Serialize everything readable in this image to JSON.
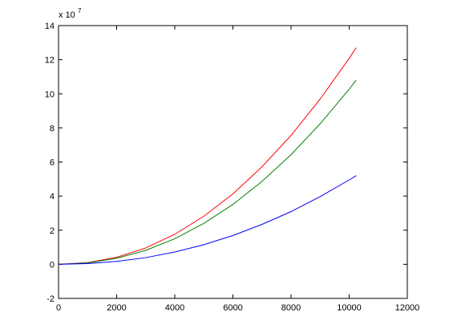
{
  "chart_data": {
    "type": "line",
    "x": [
      0,
      1000,
      2000,
      3000,
      4000,
      5000,
      6000,
      7000,
      8000,
      9000,
      10000,
      10240
    ],
    "series": [
      {
        "color": "#ff0000",
        "values": [
          0,
          0.1,
          0.41,
          0.96,
          1.76,
          2.82,
          4.13,
          5.72,
          7.56,
          9.69,
          12.08,
          12.7
        ]
      },
      {
        "color": "#008000",
        "values": [
          0,
          0.08,
          0.35,
          0.82,
          1.5,
          2.4,
          3.51,
          4.86,
          6.43,
          8.24,
          10.27,
          10.8
        ]
      },
      {
        "color": "#0000ff",
        "values": [
          0,
          0.04,
          0.17,
          0.39,
          0.72,
          1.15,
          1.69,
          2.34,
          3.09,
          3.97,
          4.95,
          5.2
        ]
      }
    ],
    "xlim": [
      0,
      12000
    ],
    "xticks": [
      0,
      2000,
      4000,
      6000,
      8000,
      10000,
      12000
    ],
    "ylim": [
      -2,
      14
    ],
    "yticks": [
      -2,
      0,
      2,
      4,
      6,
      8,
      10,
      12,
      14
    ],
    "y_multiplier": {
      "base": "x 10",
      "exponent": "7"
    },
    "grid": false
  }
}
